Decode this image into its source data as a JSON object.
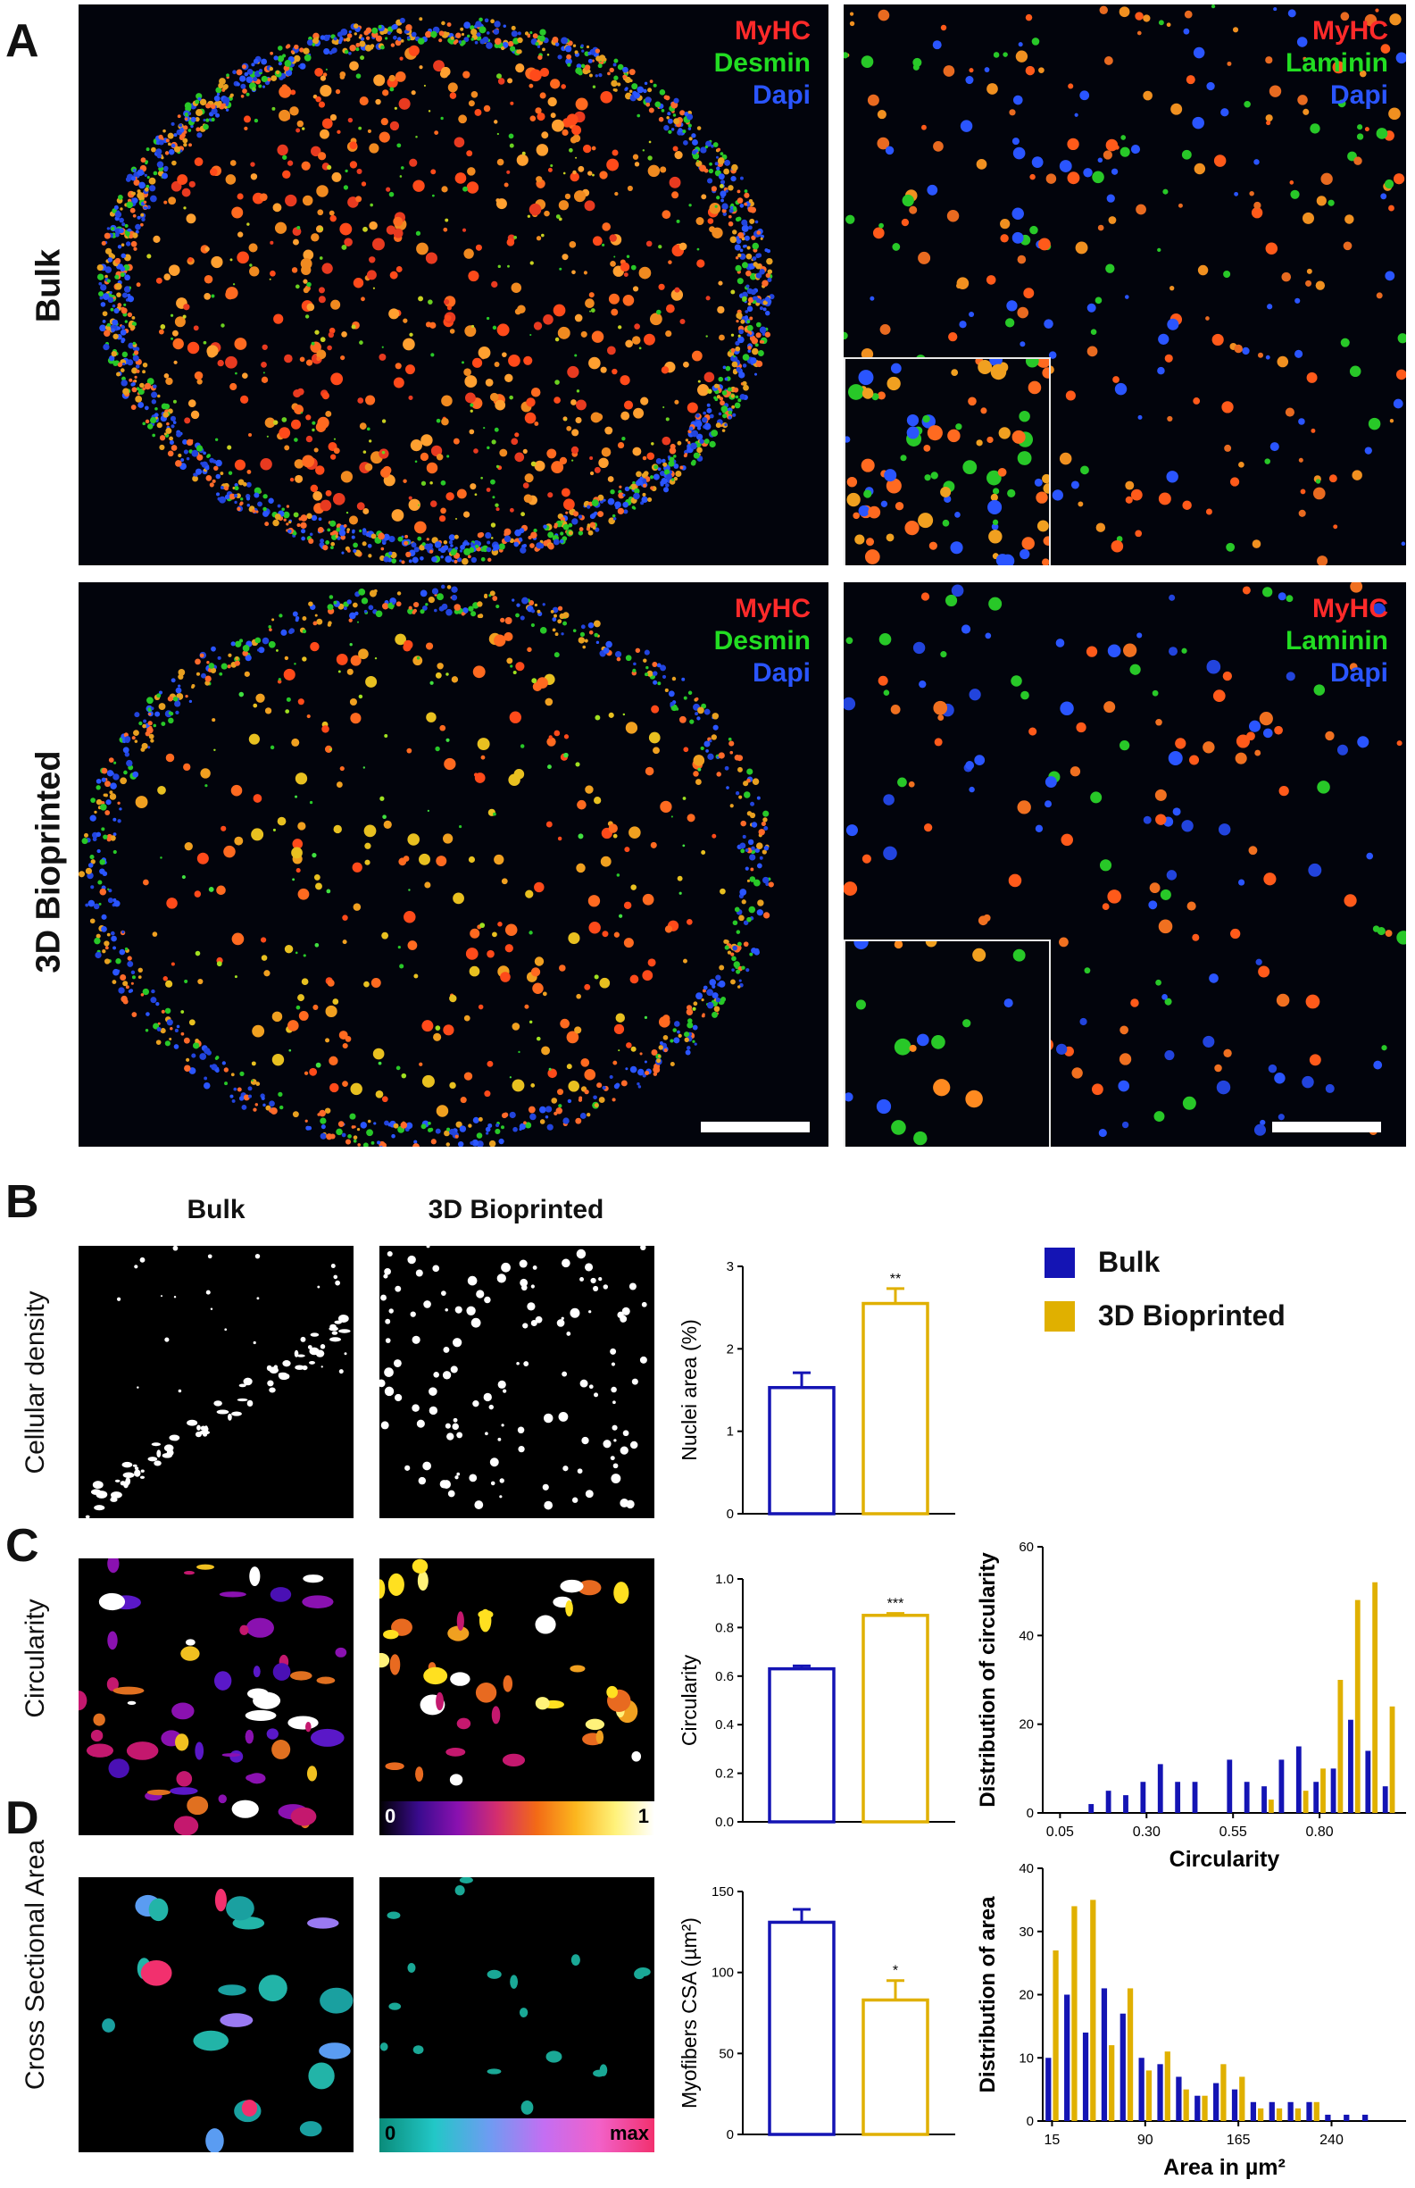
{
  "panels": {
    "a": "A",
    "b": "B",
    "c": "C",
    "d": "D"
  },
  "panel_a": {
    "rows": [
      "Bulk",
      "3D Bioprinted"
    ],
    "stains_left": [
      "MyHC",
      "Desmin",
      "Dapi"
    ],
    "stains_right": [
      "MyHC",
      "Laminin",
      "Dapi"
    ]
  },
  "panel_b": {
    "col_bulk": "Bulk",
    "col_bioprinted": "3D Bioprinted",
    "row_label": "Cellular density"
  },
  "panel_c": {
    "row_label": "Circularity",
    "cbar_min": "0",
    "cbar_max": "1"
  },
  "panel_d": {
    "row_label": "Cross Sectional Area",
    "cbar_min": "0",
    "cbar_max": "max"
  },
  "legend": {
    "bulk": "Bulk",
    "bioprinted": "3D Bioprinted"
  },
  "colors": {
    "bulk": "#1414b4",
    "bioprinted": "#e0b000"
  },
  "chart_data": [
    {
      "id": "nuclei_bar",
      "type": "bar",
      "categories": [
        "Bulk",
        "3D Bioprinted"
      ],
      "values": [
        1.53,
        2.55
      ],
      "errors": [
        0.18,
        0.18
      ],
      "significance": [
        "",
        "**"
      ],
      "ylabel": "Nuclei area (%)",
      "ylim": [
        0,
        3
      ],
      "yticks": [
        "0",
        "1",
        "2",
        "3"
      ]
    },
    {
      "id": "circ_bar",
      "type": "bar",
      "categories": [
        "Bulk",
        "3D Bioprinted"
      ],
      "values": [
        0.63,
        0.85
      ],
      "errors": [
        0.012,
        0.008
      ],
      "significance": [
        "",
        "***"
      ],
      "ylabel": "Circularity",
      "ylim": [
        0,
        1.0
      ],
      "yticks": [
        "0.0",
        "0.2",
        "0.4",
        "0.6",
        "0.8",
        "1.0"
      ]
    },
    {
      "id": "circ_hist",
      "type": "bar",
      "x": [
        0.05,
        0.1,
        0.15,
        0.2,
        0.25,
        0.3,
        0.35,
        0.4,
        0.45,
        0.5,
        0.55,
        0.6,
        0.65,
        0.7,
        0.75,
        0.8,
        0.85,
        0.9,
        0.95,
        1.0
      ],
      "series": [
        {
          "name": "Bulk",
          "values": [
            0,
            0,
            2,
            5,
            4,
            7,
            11,
            7,
            7,
            0,
            12,
            7,
            6,
            12,
            15,
            7,
            10,
            21,
            14,
            6
          ]
        },
        {
          "name": "3D Bioprinted",
          "values": [
            0,
            0,
            0,
            0,
            0,
            0,
            0,
            0,
            0,
            0,
            0,
            0,
            3,
            0,
            5,
            10,
            30,
            48,
            52,
            24
          ]
        }
      ],
      "xlabel": "Circularity",
      "ylabel": "Distribution of circularity",
      "xticks": [
        "0.05",
        "0.30",
        "0.55",
        "0.80"
      ],
      "yticks": [
        "0",
        "20",
        "40",
        "60"
      ],
      "xlim": [
        0,
        1.05
      ],
      "ylim": [
        0,
        60
      ]
    },
    {
      "id": "csa_bar",
      "type": "bar",
      "categories": [
        "Bulk",
        "3D Bioprinted"
      ],
      "values": [
        131,
        83
      ],
      "errors": [
        8,
        12
      ],
      "significance": [
        "",
        "*"
      ],
      "ylabel": "Myofibers CSA (µm²)",
      "ylim": [
        0,
        150
      ],
      "yticks": [
        "0",
        "50",
        "100",
        "150"
      ]
    },
    {
      "id": "csa_hist",
      "type": "bar",
      "x": [
        15,
        30,
        45,
        60,
        75,
        90,
        105,
        120,
        135,
        150,
        165,
        180,
        195,
        210,
        225,
        240,
        255,
        270,
        285
      ],
      "series": [
        {
          "name": "Bulk",
          "values": [
            10,
            20,
            14,
            21,
            17,
            10,
            9,
            7,
            4,
            6,
            5,
            3,
            3,
            3,
            3,
            1,
            1,
            1,
            0
          ]
        },
        {
          "name": "3D Bioprinted",
          "values": [
            27,
            34,
            35,
            12,
            21,
            8,
            11,
            5,
            4,
            9,
            7,
            2,
            2,
            2,
            3,
            0,
            0,
            0,
            0
          ]
        }
      ],
      "xlabel": "Area in µm²",
      "ylabel": "Distribution of area",
      "xticks": [
        "15",
        "90",
        "165",
        "240"
      ],
      "yticks": [
        "0",
        "10",
        "20",
        "30",
        "40"
      ],
      "xlim": [
        7.5,
        300
      ],
      "ylim": [
        0,
        40
      ]
    }
  ]
}
